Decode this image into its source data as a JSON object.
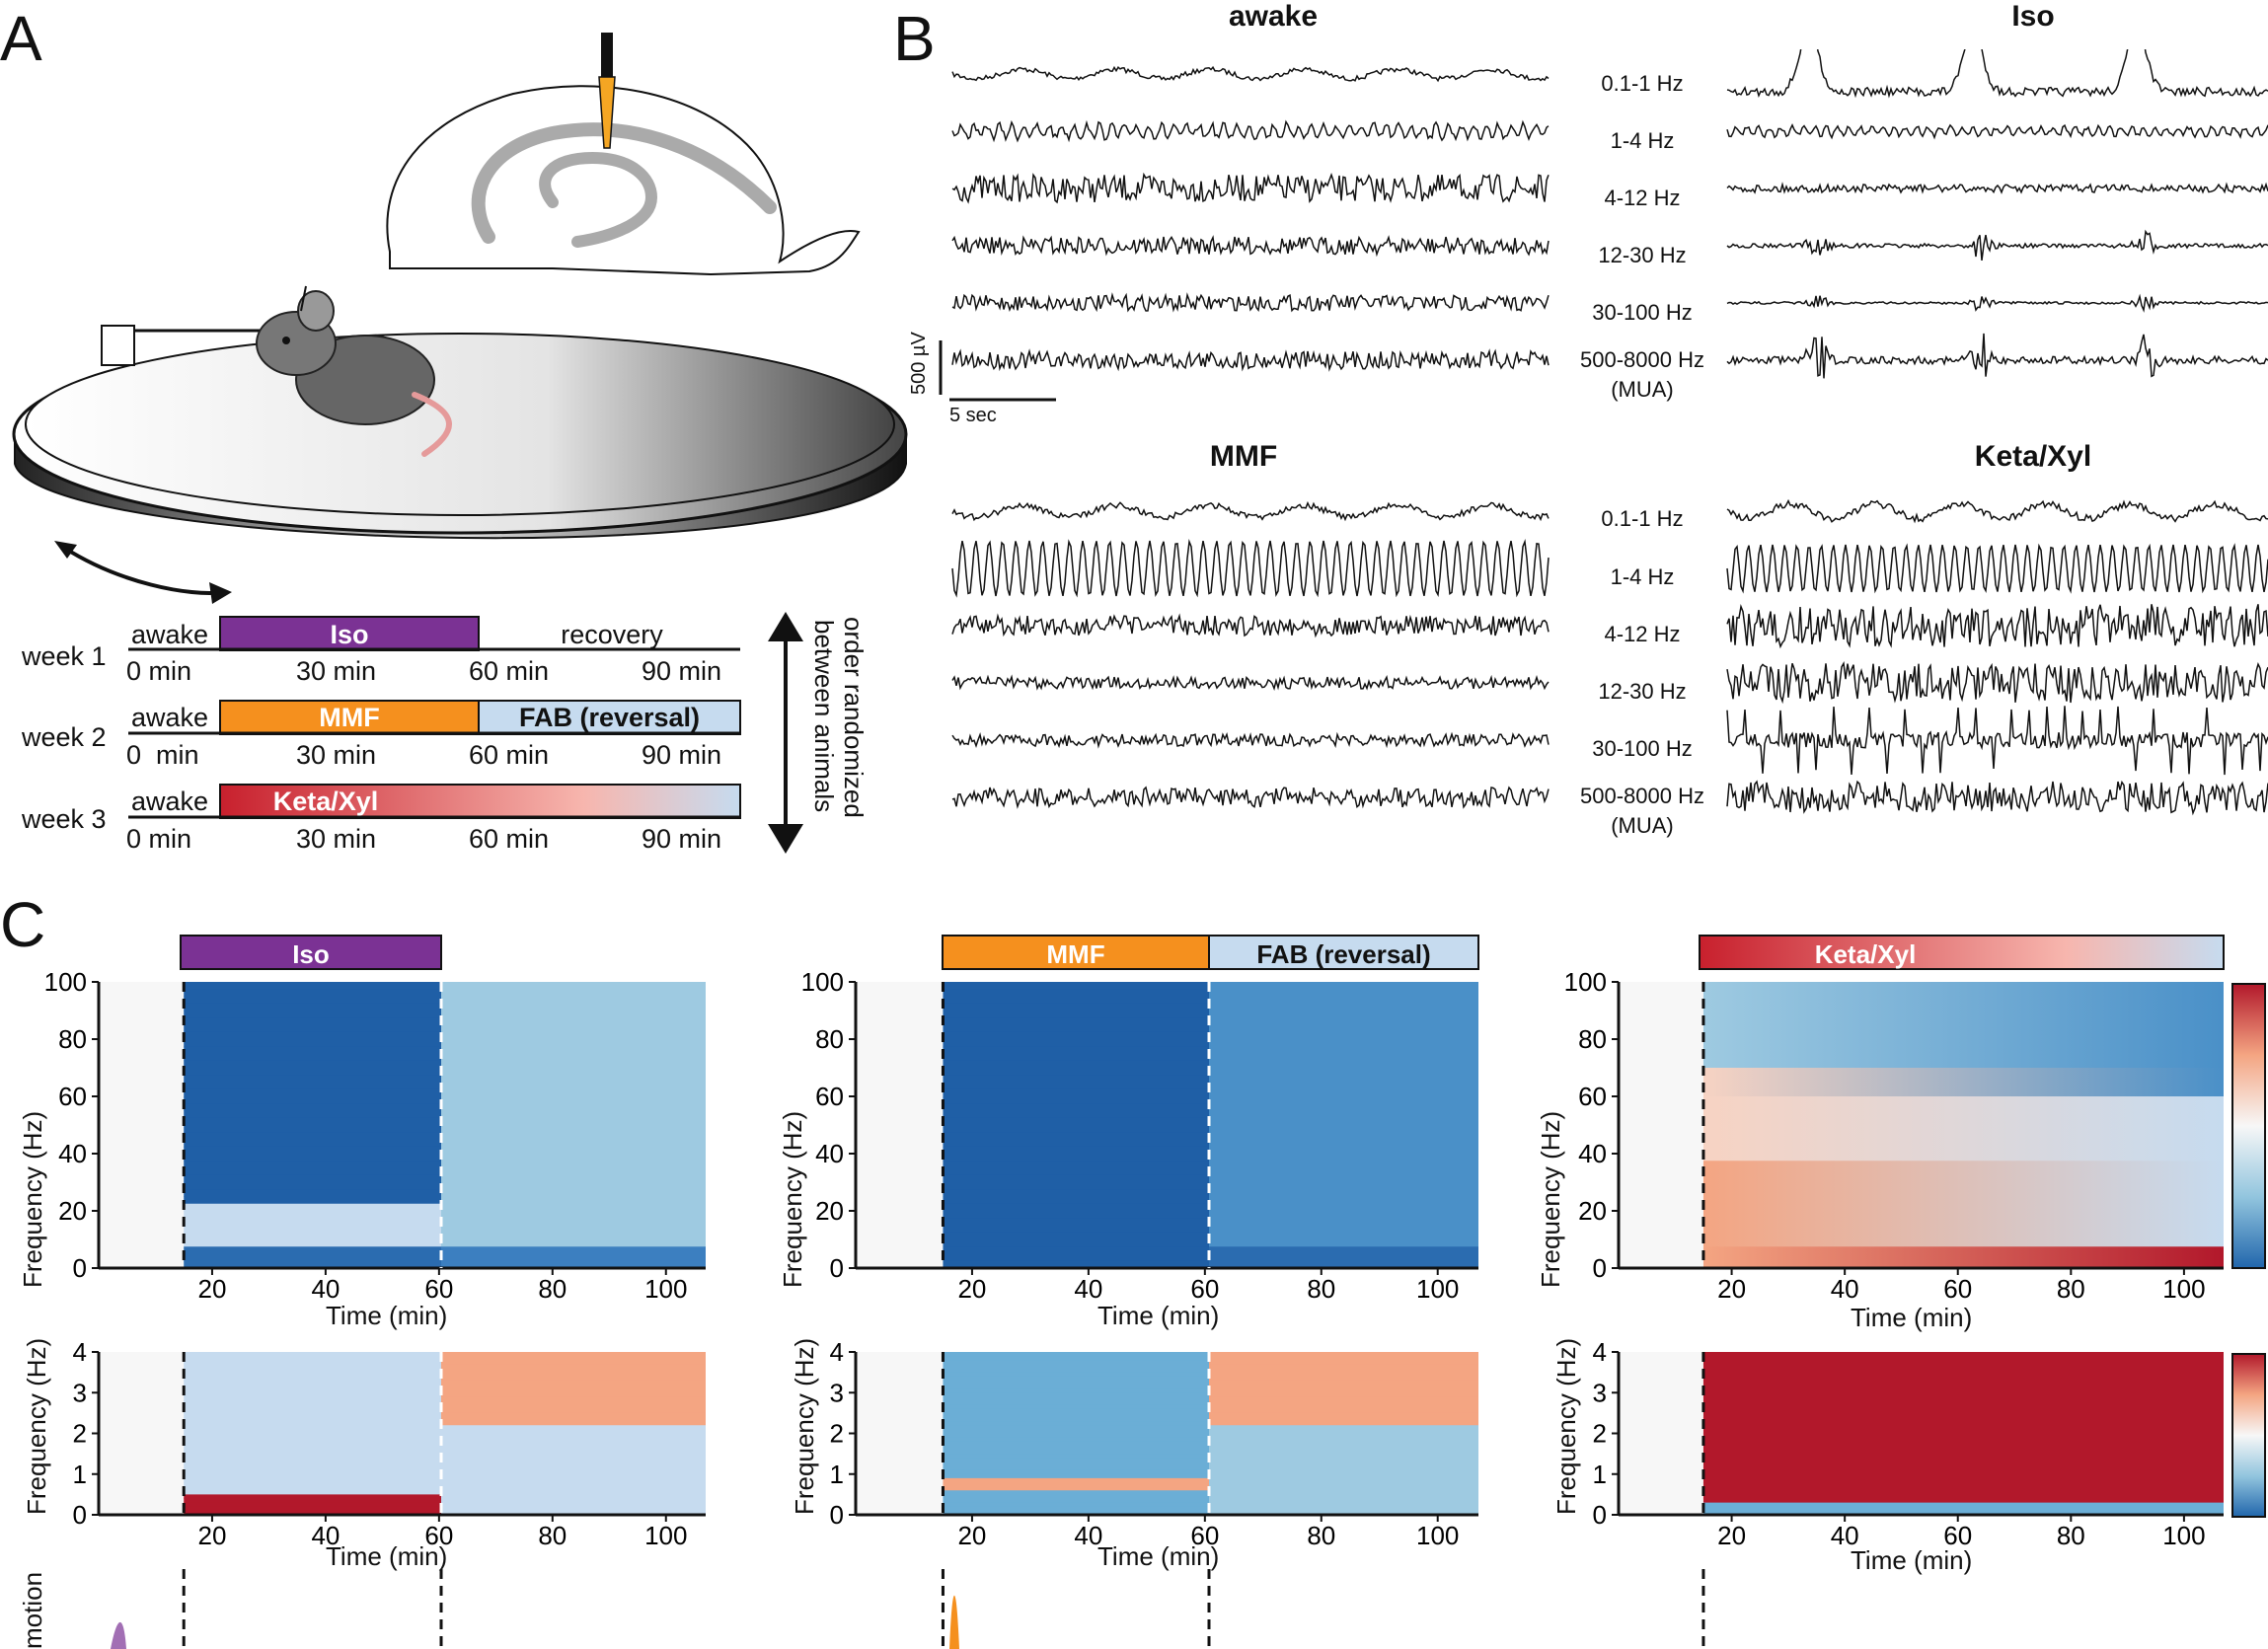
{
  "panels": {
    "a": "A",
    "b": "B",
    "c": "C"
  },
  "timeline": {
    "weeks": [
      {
        "label": "week 1",
        "pre": "awake",
        "drug": "Iso",
        "post": "recovery"
      },
      {
        "label": "week 2",
        "pre": "awake",
        "drug": "MMF",
        "post": "FAB (reversal)"
      },
      {
        "label": "week 3",
        "pre": "awake",
        "drug": "Keta/Xyl",
        "post": ""
      }
    ],
    "ticks_week1": [
      "0 min",
      "30 min",
      "60 min",
      "90 min"
    ],
    "ticks_week2": [
      "0  min",
      "30 min",
      "60 min",
      "90 min"
    ],
    "ticks_week3": [
      "0 min",
      "30 min",
      "60 min",
      "90 min"
    ],
    "order_note_line1": "order randomized",
    "order_note_line2": "between animals"
  },
  "traces": {
    "conditions": [
      "awake",
      "Iso",
      "MMF",
      "Keta/Xyl"
    ],
    "bands": [
      "0.1-1 Hz",
      "1-4 Hz",
      "4-12 Hz",
      "12-30 Hz",
      "30-100 Hz",
      "500-8000 Hz"
    ],
    "mua_note": "(MUA)",
    "scale_v": "500 µV",
    "scale_t": "5 sec"
  },
  "spectrograms": {
    "panels": [
      {
        "drug": "Iso",
        "reversal": "",
        "color": "#7b3294"
      },
      {
        "drug": "MMF",
        "reversal": "FAB (reversal)",
        "color": "#f5901e"
      },
      {
        "drug": "Keta/Xyl",
        "reversal": "",
        "color": "#c8202d"
      }
    ],
    "ylabel": "Frequency (Hz)",
    "xlabel": "Time (min)",
    "xticks": [
      "20",
      "40",
      "60",
      "80",
      "100"
    ],
    "yticks_high": [
      "0",
      "20",
      "40",
      "60",
      "80",
      "100"
    ],
    "yticks_low": [
      "0",
      "1",
      "2",
      "3",
      "4"
    ],
    "motion_label": "motion"
  },
  "colors": {
    "blue": "#1f5fa6",
    "red": "#b2182b",
    "light_blue": "#c6dbef",
    "purple": "#7b3294",
    "orange": "#f5901e"
  }
}
